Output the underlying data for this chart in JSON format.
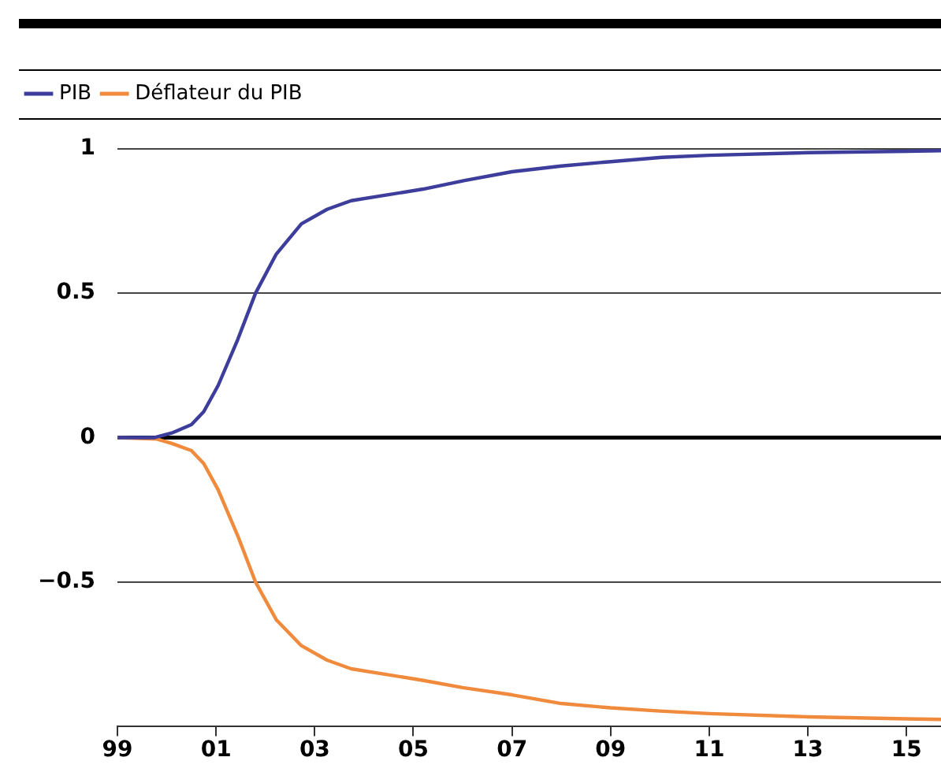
{
  "chart_data": {
    "type": "line",
    "series": [
      {
        "name": "PIB",
        "color": "#3d3d9c",
        "x": [
          1999,
          1999.74,
          2000.1,
          2000.5,
          2000.75,
          2001.04,
          2001.44,
          2001.8,
          2002.22,
          2002.73,
          2003.25,
          2003.74,
          2004.47,
          2005.2,
          2006.04,
          2007,
          2008,
          2009,
          2010.04,
          2011,
          2013,
          2015,
          2015.7
        ],
        "values": [
          0,
          0,
          0.016,
          0.045,
          0.09,
          0.18,
          0.34,
          0.5,
          0.635,
          0.74,
          0.79,
          0.82,
          0.84,
          0.86,
          0.89,
          0.92,
          0.94,
          0.955,
          0.97,
          0.977,
          0.986,
          0.991,
          0.993
        ]
      },
      {
        "name": "Déflateur du PIB",
        "color": "#f08a3c",
        "x": [
          1999,
          1999.8,
          2000.1,
          2000.5,
          2000.75,
          2001.04,
          2001.44,
          2001.8,
          2002.22,
          2002.73,
          2003.25,
          2003.74,
          2004.47,
          2005.2,
          2006,
          2007,
          2008,
          2009,
          2010,
          2011,
          2013,
          2015,
          2015.7
        ],
        "values": [
          0,
          -0.005,
          -0.02,
          -0.045,
          -0.09,
          -0.18,
          -0.34,
          -0.5,
          -0.63,
          -0.72,
          -0.77,
          -0.8,
          -0.82,
          -0.84,
          -0.865,
          -0.89,
          -0.92,
          -0.935,
          -0.946,
          -0.955,
          -0.966,
          -0.973,
          -0.975
        ]
      }
    ],
    "xlim": [
      1999,
      2015.7
    ],
    "xticks": [
      {
        "value": 1999,
        "label": "99"
      },
      {
        "value": 2001,
        "label": "01"
      },
      {
        "value": 2003,
        "label": "03"
      },
      {
        "value": 2005,
        "label": "05"
      },
      {
        "value": 2007,
        "label": "07"
      },
      {
        "value": 2009,
        "label": "09"
      },
      {
        "value": 2011,
        "label": "11"
      },
      {
        "value": 2013,
        "label": "13"
      },
      {
        "value": 2015,
        "label": "15"
      }
    ],
    "ylim": [
      -1,
      1.1
    ],
    "yticks": [
      {
        "value": -0.5,
        "label": "−0.5"
      },
      0,
      0.5,
      1
    ],
    "grid": "y",
    "legend": "top",
    "marker": "none",
    "line_style": "solid"
  }
}
